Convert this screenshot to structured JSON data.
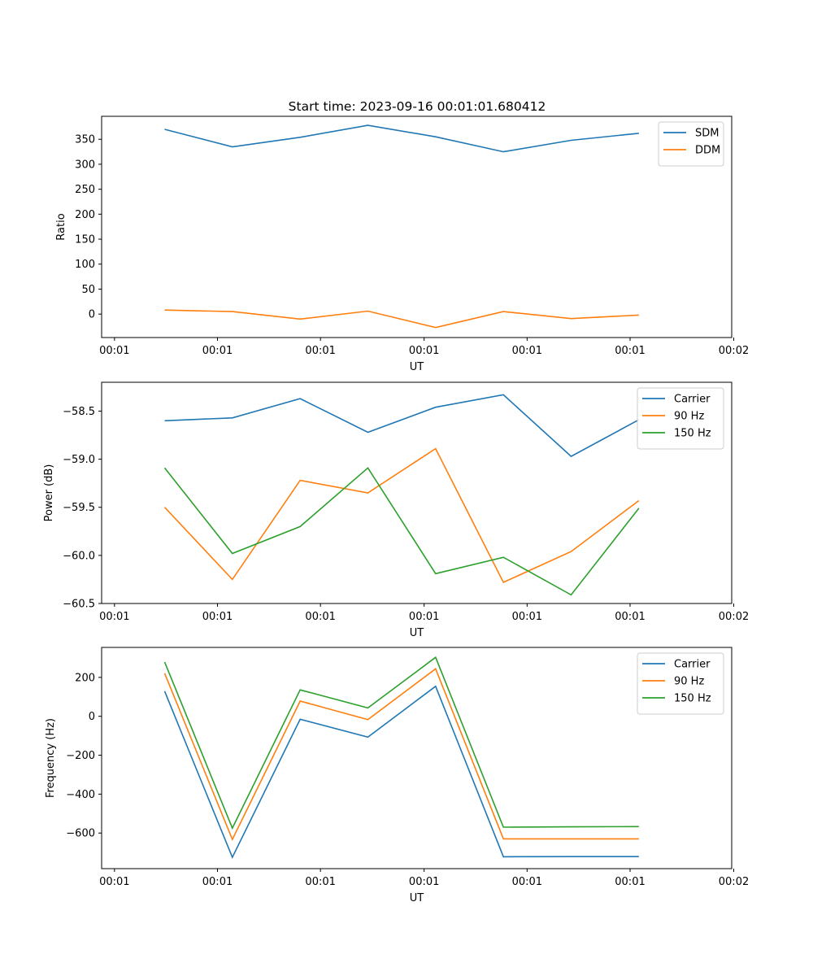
{
  "figure": {
    "title": "Start time: 2023-09-16 00:01:01.680412"
  },
  "chart_data": [
    {
      "type": "line",
      "title": "Start time: 2023-09-16 00:01:01.680412",
      "xlabel": "UT",
      "ylabel": "Ratio",
      "x": [
        0,
        1,
        2,
        3,
        4,
        5,
        6,
        7
      ],
      "xticks": [
        -0.74,
        0.78,
        2.3,
        3.83,
        5.35,
        6.87,
        8.4
      ],
      "xtick_labels": [
        "00:01",
        "00:01",
        "00:01",
        "00:01",
        "00:01",
        "00:01",
        "00:02"
      ],
      "xlim": [
        -0.93,
        8.37
      ],
      "ylim": [
        -47,
        396
      ],
      "yticks": [
        0,
        50,
        100,
        150,
        200,
        250,
        300,
        350
      ],
      "ytick_labels": [
        "0",
        "50",
        "100",
        "150",
        "200",
        "250",
        "300",
        "350"
      ],
      "legend": "top-right",
      "grid": false,
      "series": [
        {
          "name": "SDM",
          "color": "#1f77b4",
          "values": [
            370,
            335,
            354,
            378,
            355,
            325,
            348,
            362
          ]
        },
        {
          "name": "DDM",
          "color": "#ff7f0e",
          "values": [
            8,
            5,
            -10,
            6,
            -27,
            5,
            -9,
            -2
          ]
        }
      ]
    },
    {
      "type": "line",
      "title": "",
      "xlabel": "UT",
      "ylabel": "Power (dB)",
      "x": [
        0,
        1,
        2,
        3,
        4,
        5,
        6,
        7
      ],
      "xticks": [
        -0.74,
        0.78,
        2.3,
        3.83,
        5.35,
        6.87,
        8.4
      ],
      "xtick_labels": [
        "00:01",
        "00:01",
        "00:01",
        "00:01",
        "00:01",
        "00:01",
        "00:02"
      ],
      "xlim": [
        -0.93,
        8.37
      ],
      "ylim": [
        -60.5,
        -58.2
      ],
      "yticks": [
        -60.5,
        -60.0,
        -59.5,
        -59.0,
        -58.5
      ],
      "ytick_labels": [
        "−60.5",
        "−60.0",
        "−59.5",
        "−59.0",
        "−58.5"
      ],
      "legend": "top-right",
      "grid": false,
      "series": [
        {
          "name": "Carrier",
          "color": "#1f77b4",
          "values": [
            -58.6,
            -58.57,
            -58.37,
            -58.72,
            -58.46,
            -58.33,
            -58.97,
            -58.59
          ]
        },
        {
          "name": "90 Hz",
          "color": "#ff7f0e",
          "values": [
            -59.5,
            -60.25,
            -59.22,
            -59.35,
            -58.89,
            -60.28,
            -59.96,
            -59.43
          ]
        },
        {
          "name": "150 Hz",
          "color": "#2ca02c",
          "values": [
            -59.09,
            -59.98,
            -59.7,
            -59.09,
            -60.19,
            -60.02,
            -60.41,
            -59.51
          ]
        }
      ]
    },
    {
      "type": "line",
      "title": "",
      "xlabel": "UT",
      "ylabel": "Frequency (Hz)",
      "x": [
        0,
        1,
        2,
        3,
        4,
        5,
        6,
        7
      ],
      "xticks": [
        -0.74,
        0.78,
        2.3,
        3.83,
        5.35,
        6.87,
        8.4
      ],
      "xtick_labels": [
        "00:01",
        "00:01",
        "00:01",
        "00:01",
        "00:01",
        "00:01",
        "00:02"
      ],
      "xlim": [
        -0.93,
        8.37
      ],
      "ylim": [
        -783,
        354
      ],
      "yticks": [
        -600,
        -400,
        -200,
        0,
        200
      ],
      "ytick_labels": [
        "−600",
        "−400",
        "−200",
        "0",
        "200"
      ],
      "legend": "top-right",
      "grid": false,
      "series": [
        {
          "name": "Carrier",
          "color": "#1f77b4",
          "values": [
            129,
            -725,
            -15,
            -107,
            154,
            -722,
            -721,
            -721
          ]
        },
        {
          "name": "90 Hz",
          "color": "#ff7f0e",
          "values": [
            221,
            -633,
            78,
            -17,
            244,
            -630,
            -630,
            -630
          ]
        },
        {
          "name": "150 Hz",
          "color": "#2ca02c",
          "values": [
            279,
            -575,
            136,
            43,
            303,
            -570,
            -568,
            -567
          ]
        }
      ]
    }
  ]
}
